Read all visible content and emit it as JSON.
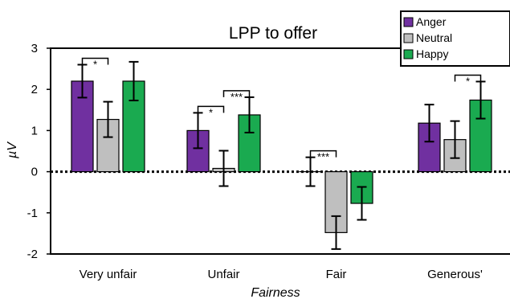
{
  "chart_data": {
    "type": "bar",
    "title": "LPP to offer",
    "xlabel": "Fairness",
    "ylabel": "µV",
    "ylim": [
      -2,
      3
    ],
    "yticks": [
      "3",
      "2",
      "1",
      "0",
      "-1",
      "-2"
    ],
    "categories": [
      "Very unfair",
      "Unfair",
      "Fair",
      "Generous'"
    ],
    "series": [
      {
        "name": "Anger",
        "color": "#7030a0",
        "values": [
          2.2,
          1.0,
          0.0,
          1.18
        ],
        "errors": [
          0.4,
          0.43,
          0.35,
          0.45
        ]
      },
      {
        "name": "Neutral",
        "color": "#bfbfbf",
        "values": [
          1.27,
          0.08,
          -1.48,
          0.78
        ],
        "errors": [
          0.43,
          0.43,
          0.4,
          0.45
        ]
      },
      {
        "name": "Happy",
        "color": "#1aaa50",
        "values": [
          2.2,
          1.38,
          -0.77,
          1.74
        ],
        "errors": [
          0.47,
          0.43,
          0.4,
          0.45
        ]
      }
    ],
    "significance": [
      {
        "category": "Very unfair",
        "between": [
          "Anger",
          "Neutral"
        ],
        "label": "*"
      },
      {
        "category": "Unfair",
        "between": [
          "Anger",
          "Neutral"
        ],
        "label": "*"
      },
      {
        "category": "Unfair",
        "between": [
          "Neutral",
          "Happy"
        ],
        "label": "***"
      },
      {
        "category": "Fair",
        "between": [
          "Anger",
          "Neutral"
        ],
        "label": "***"
      },
      {
        "category": "Generous'",
        "between": [
          "Neutral",
          "Happy"
        ],
        "label": "*"
      }
    ],
    "legend_position": "top-right",
    "zero_line": "dotted"
  }
}
